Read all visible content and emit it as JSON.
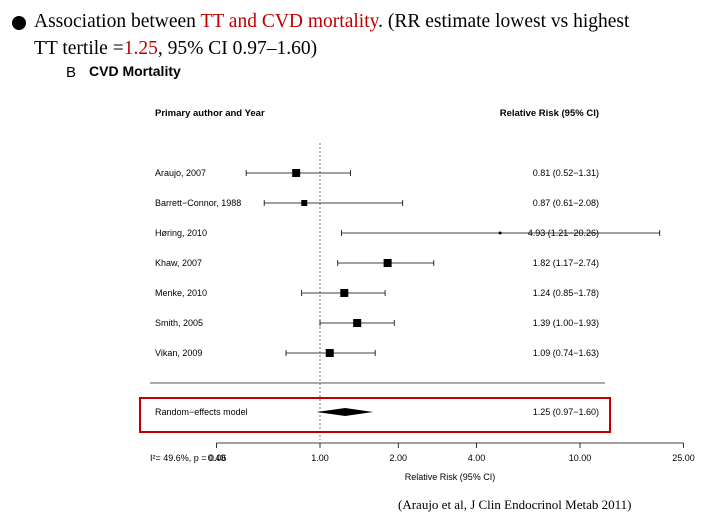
{
  "slide": {
    "line1_a": "Association between",
    "line1_b": "TT and CVD mortality",
    "line1_c": ". (RR estimate lowest vs highest",
    "line2_a": "TT tertile =",
    "line2_b": "1.25",
    "line2_c": ", 95% CI 0.97–1.60)",
    "citation": "(Araujo et al, J Clin Endocrinol Metab 2011)",
    "accent_color": "#c00000"
  },
  "chart_data": {
    "type": "forest",
    "panel_label": "B",
    "title": "CVD Mortality",
    "left_header": "Primary author and Year",
    "right_header": "Relative Risk (95% CI)",
    "xlabel": "Relative Risk (95% CI)",
    "x_scale": "log",
    "xlim": [
      0.4,
      25
    ],
    "reference_line": 1.0,
    "x_ticks": [
      "0.40",
      "1.00",
      "2.00",
      "4.00",
      "10.00",
      "25.00"
    ],
    "studies": [
      {
        "label": "Araujo, 2007",
        "rr": 0.81,
        "lower": 0.52,
        "upper": 1.31,
        "ci_text": "0.81 (0.52−1.31)"
      },
      {
        "label": "Barrett−Connor, 1988",
        "rr": 0.87,
        "lower": 0.61,
        "upper": 2.08,
        "ci_text": "0.87 (0.61−2.08)"
      },
      {
        "label": "Høring, 2010",
        "rr": 4.93,
        "lower": 1.21,
        "upper": 20.26,
        "ci_text": "4.93 (1.21−20.26)"
      },
      {
        "label": "Khaw, 2007",
        "rr": 1.82,
        "lower": 1.17,
        "upper": 2.74,
        "ci_text": "1.82 (1.17−2.74)"
      },
      {
        "label": "Menke, 2010",
        "rr": 1.24,
        "lower": 0.85,
        "upper": 1.78,
        "ci_text": "1.24 (0.85−1.78)"
      },
      {
        "label": "Smith, 2005",
        "rr": 1.39,
        "lower": 1.0,
        "upper": 1.93,
        "ci_text": "1.39 (1.00−1.93)"
      },
      {
        "label": "Vikan, 2009",
        "rr": 1.09,
        "lower": 0.74,
        "upper": 1.63,
        "ci_text": "1.09 (0.74−1.63)"
      }
    ],
    "pooled": {
      "label": "Random−effects model",
      "rr": 1.25,
      "lower": 0.97,
      "upper": 1.6,
      "ci_text": "1.25 (0.97−1.60)"
    },
    "heterogeneity": "I²= 49.6%, p = 0.06",
    "highlight_color": "#c00000"
  }
}
